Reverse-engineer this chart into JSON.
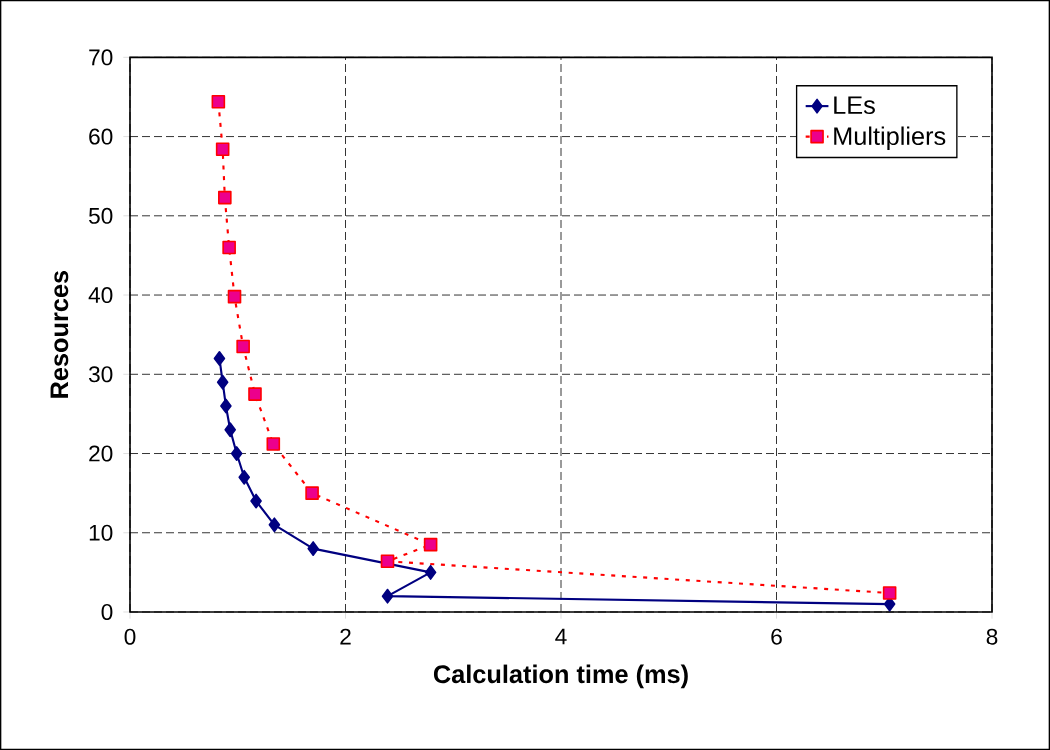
{
  "chart_data": {
    "type": "line",
    "xlabel": "Calculation time (ms)",
    "ylabel": "Resources",
    "xlim": [
      0,
      8
    ],
    "xticks": [
      0,
      2,
      4,
      6,
      8
    ],
    "ylim": [
      0,
      70
    ],
    "yticks": [
      0,
      10,
      20,
      30,
      40,
      50,
      60,
      70
    ],
    "grid": true,
    "legend": "top right",
    "series": [
      {
        "name": "LEs",
        "color": "#000080",
        "marker": "diamond",
        "line_style": "solid",
        "x": [
          0.83,
          0.86,
          0.89,
          0.93,
          0.99,
          1.06,
          1.17,
          1.34,
          1.7,
          2.79,
          2.39,
          7.05
        ],
        "values": [
          32,
          29,
          26,
          23,
          20,
          17,
          14,
          11,
          8,
          5,
          2,
          1
        ]
      },
      {
        "name": "Multipliers",
        "color": "#ff0000",
        "marker": "square",
        "line_style": "dotted",
        "x": [
          0.82,
          0.86,
          0.88,
          0.92,
          0.97,
          1.05,
          1.16,
          1.33,
          1.69,
          2.79,
          2.39,
          7.05
        ],
        "values": [
          64.4,
          58.4,
          52.3,
          46,
          39.8,
          33.5,
          27.5,
          21.2,
          15,
          8.5,
          6.4,
          2.4
        ]
      }
    ]
  }
}
